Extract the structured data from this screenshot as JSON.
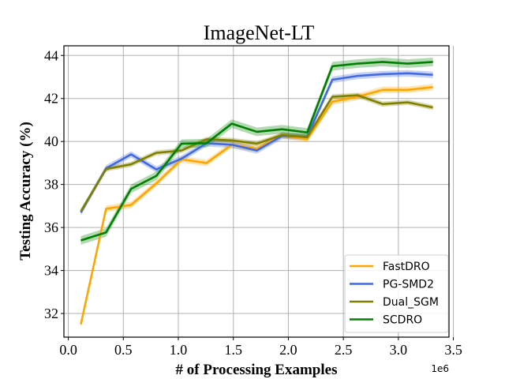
{
  "chart_data": {
    "type": "line",
    "title": "ImageNet-LT",
    "xlabel": "# of Processing Examples",
    "ylabel": "Testing Accuracy (%)",
    "x_offset_label": "1e6",
    "xlim": [
      -0.04,
      3.46
    ],
    "ylim": [
      30.9,
      44.45
    ],
    "xticks": [
      0.0,
      0.5,
      1.0,
      1.5,
      2.0,
      2.5,
      3.0,
      3.5
    ],
    "xtick_labels": [
      "0.0",
      "0.5",
      "1.0",
      "1.5",
      "2.0",
      "2.5",
      "3.0",
      "3.5"
    ],
    "yticks": [
      32,
      34,
      36,
      38,
      40,
      42,
      44
    ],
    "ytick_labels": [
      "32",
      "34",
      "36",
      "38",
      "40",
      "42",
      "44"
    ],
    "grid": true,
    "legend_position": "lower-right",
    "x": [
      0.114,
      0.343,
      0.571,
      0.8,
      1.029,
      1.257,
      1.486,
      1.714,
      1.943,
      2.171,
      2.4,
      2.629,
      2.857,
      3.086,
      3.314
    ],
    "series": [
      {
        "name": "FastDRO",
        "color": "#ffa500",
        "values": [
          31.5,
          36.87,
          37.05,
          38.05,
          39.17,
          39.0,
          39.85,
          39.66,
          40.3,
          40.1,
          41.85,
          42.08,
          42.4,
          42.4,
          42.53
        ],
        "band": 0.15
      },
      {
        "name": "PG-SMD2",
        "color": "#4169e1",
        "values": [
          36.7,
          38.75,
          39.4,
          38.7,
          39.2,
          39.92,
          39.85,
          39.58,
          40.26,
          40.22,
          42.87,
          43.05,
          43.13,
          43.17,
          43.1
        ],
        "band": 0.15
      },
      {
        "name": "Dual_SGM",
        "color": "#808000",
        "values": [
          36.75,
          38.72,
          38.94,
          39.47,
          39.58,
          40.1,
          40.05,
          39.9,
          40.3,
          40.2,
          42.08,
          42.15,
          41.74,
          41.82,
          41.58
        ],
        "band": 0.12
      },
      {
        "name": "SCDRO",
        "color": "#008000",
        "values": [
          35.4,
          35.77,
          37.8,
          38.4,
          39.9,
          39.92,
          40.83,
          40.45,
          40.57,
          40.42,
          43.5,
          43.62,
          43.7,
          43.62,
          43.7
        ],
        "band": 0.2
      }
    ]
  }
}
